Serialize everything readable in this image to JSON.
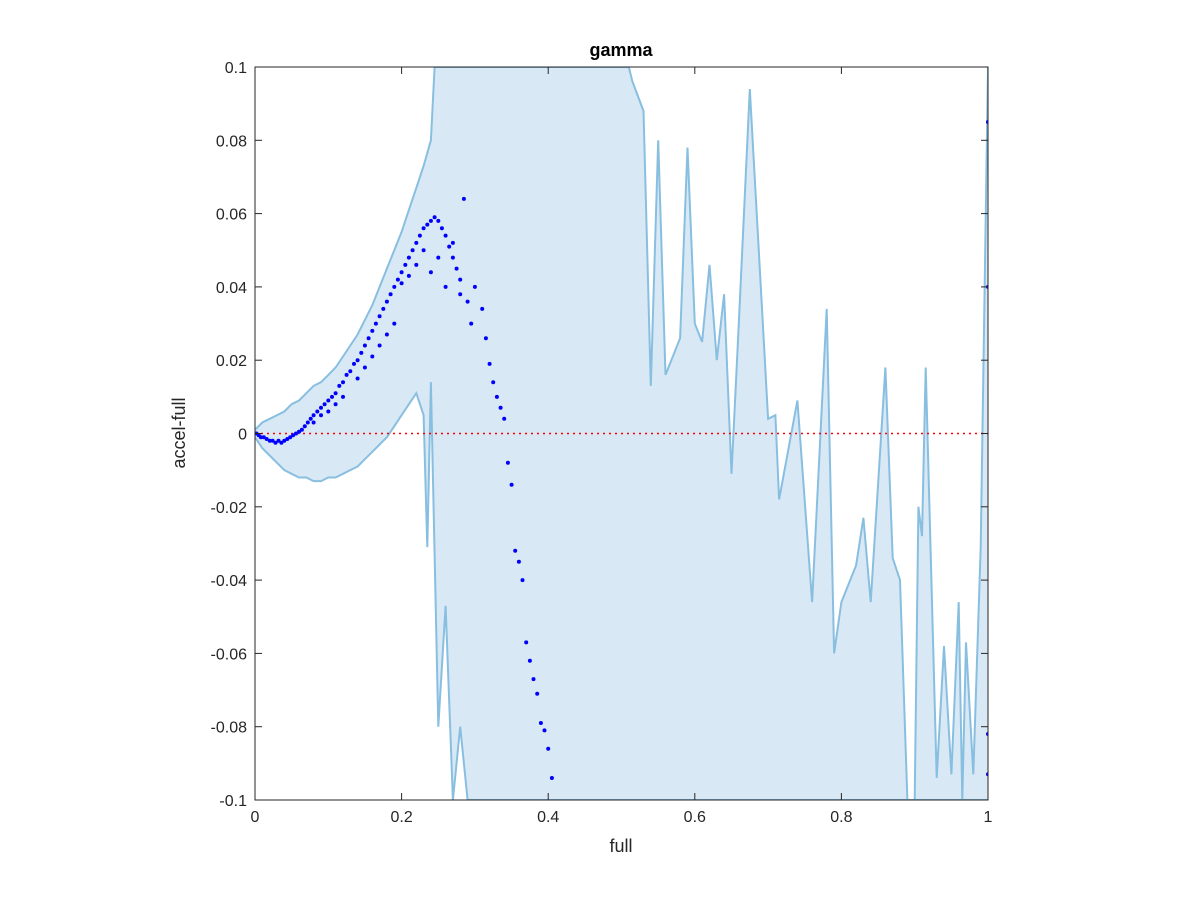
{
  "chart_data": {
    "type": "scatter",
    "title": "gamma",
    "xlabel": "full",
    "ylabel": "accel-full",
    "xlim": [
      0,
      1
    ],
    "ylim": [
      -0.1,
      0.1
    ],
    "xticks": [
      0,
      0.2,
      0.4,
      0.6,
      0.8,
      1
    ],
    "yticks": [
      -0.1,
      -0.08,
      -0.06,
      -0.04,
      -0.02,
      0,
      0.02,
      0.04,
      0.06,
      0.08,
      0.1
    ],
    "xtick_labels": [
      "0",
      "0.2",
      "0.4",
      "0.6",
      "0.8",
      "1"
    ],
    "ytick_labels": [
      "-0.1",
      "-0.08",
      "-0.06",
      "-0.04",
      "-0.02",
      "0",
      "0.02",
      "0.04",
      "0.06",
      "0.08",
      "0.1"
    ],
    "grid": false,
    "box": true,
    "colors": {
      "band_fill": "#d9e8f5",
      "band_line": "#88bfe0",
      "points": "#0000ff",
      "reference_line": "#ff0000"
    },
    "reference_line": {
      "y": 0,
      "style": "dotted"
    },
    "band": {
      "upper": [
        [
          0.0,
          0.001
        ],
        [
          0.01,
          0.003
        ],
        [
          0.02,
          0.004
        ],
        [
          0.03,
          0.005
        ],
        [
          0.04,
          0.006
        ],
        [
          0.05,
          0.008
        ],
        [
          0.06,
          0.009
        ],
        [
          0.07,
          0.011
        ],
        [
          0.08,
          0.013
        ],
        [
          0.09,
          0.014
        ],
        [
          0.1,
          0.016
        ],
        [
          0.11,
          0.018
        ],
        [
          0.12,
          0.021
        ],
        [
          0.13,
          0.024
        ],
        [
          0.14,
          0.027
        ],
        [
          0.15,
          0.031
        ],
        [
          0.16,
          0.035
        ],
        [
          0.17,
          0.04
        ],
        [
          0.18,
          0.045
        ],
        [
          0.19,
          0.05
        ],
        [
          0.2,
          0.055
        ],
        [
          0.21,
          0.061
        ],
        [
          0.22,
          0.067
        ],
        [
          0.23,
          0.073
        ],
        [
          0.24,
          0.08
        ],
        [
          0.245,
          0.1
        ],
        [
          0.265,
          0.1
        ],
        [
          0.48,
          0.1
        ],
        [
          0.49,
          0.1
        ],
        [
          0.5,
          0.1
        ],
        [
          0.51,
          0.1
        ],
        [
          0.515,
          0.096
        ],
        [
          0.53,
          0.088
        ],
        [
          0.54,
          0.013
        ],
        [
          0.55,
          0.08
        ],
        [
          0.56,
          0.016
        ],
        [
          0.58,
          0.026
        ],
        [
          0.59,
          0.078
        ],
        [
          0.6,
          0.03
        ],
        [
          0.61,
          0.025
        ],
        [
          0.62,
          0.046
        ],
        [
          0.63,
          0.02
        ],
        [
          0.64,
          0.038
        ],
        [
          0.65,
          -0.011
        ],
        [
          0.66,
          0.03
        ],
        [
          0.675,
          0.094
        ],
        [
          0.69,
          0.04
        ],
        [
          0.7,
          0.004
        ],
        [
          0.71,
          0.005
        ],
        [
          0.715,
          -0.018
        ],
        [
          0.74,
          0.009
        ],
        [
          0.76,
          -0.046
        ],
        [
          0.78,
          0.034
        ],
        [
          0.79,
          -0.06
        ],
        [
          0.8,
          -0.046
        ],
        [
          0.82,
          -0.036
        ],
        [
          0.83,
          -0.023
        ],
        [
          0.84,
          -0.046
        ],
        [
          0.86,
          0.018
        ],
        [
          0.87,
          -0.034
        ],
        [
          0.88,
          -0.04
        ],
        [
          0.89,
          -0.1
        ],
        [
          0.9,
          -0.1
        ],
        [
          0.905,
          -0.02
        ],
        [
          0.91,
          -0.028
        ],
        [
          0.915,
          0.018
        ],
        [
          0.93,
          -0.094
        ],
        [
          0.94,
          -0.058
        ],
        [
          0.95,
          -0.093
        ],
        [
          0.96,
          -0.046
        ],
        [
          0.965,
          -0.1
        ],
        [
          0.97,
          -0.057
        ],
        [
          0.98,
          -0.093
        ],
        [
          0.99,
          -0.031
        ],
        [
          1.0,
          0.1
        ]
      ],
      "lower": [
        [
          0.0,
          -0.001
        ],
        [
          0.01,
          -0.004
        ],
        [
          0.02,
          -0.006
        ],
        [
          0.03,
          -0.008
        ],
        [
          0.04,
          -0.01
        ],
        [
          0.05,
          -0.011
        ],
        [
          0.06,
          -0.012
        ],
        [
          0.07,
          -0.012
        ],
        [
          0.08,
          -0.013
        ],
        [
          0.09,
          -0.013
        ],
        [
          0.1,
          -0.012
        ],
        [
          0.11,
          -0.012
        ],
        [
          0.12,
          -0.011
        ],
        [
          0.13,
          -0.01
        ],
        [
          0.14,
          -0.009
        ],
        [
          0.15,
          -0.007
        ],
        [
          0.16,
          -0.005
        ],
        [
          0.17,
          -0.003
        ],
        [
          0.18,
          -0.001
        ],
        [
          0.19,
          0.002
        ],
        [
          0.2,
          0.005
        ],
        [
          0.21,
          0.008
        ],
        [
          0.22,
          0.011
        ],
        [
          0.23,
          0.005
        ],
        [
          0.235,
          -0.031
        ],
        [
          0.24,
          0.014
        ],
        [
          0.25,
          -0.08
        ],
        [
          0.26,
          -0.047
        ],
        [
          0.27,
          -0.1
        ],
        [
          0.28,
          -0.08
        ],
        [
          0.29,
          -0.1
        ],
        [
          0.3,
          -0.1
        ],
        [
          0.31,
          -0.1
        ],
        [
          0.48,
          -0.1
        ],
        [
          0.6,
          -0.1
        ],
        [
          0.8,
          -0.1
        ],
        [
          0.9,
          -0.1
        ],
        [
          1.0,
          -0.1
        ]
      ]
    },
    "points": [
      [
        0.002,
        0.0
      ],
      [
        0.005,
        -0.0005
      ],
      [
        0.008,
        -0.001
      ],
      [
        0.012,
        -0.001
      ],
      [
        0.016,
        -0.0015
      ],
      [
        0.02,
        -0.002
      ],
      [
        0.024,
        -0.002
      ],
      [
        0.028,
        -0.0025
      ],
      [
        0.032,
        -0.002
      ],
      [
        0.036,
        -0.0025
      ],
      [
        0.04,
        -0.002
      ],
      [
        0.044,
        -0.0015
      ],
      [
        0.048,
        -0.001
      ],
      [
        0.052,
        -0.0005
      ],
      [
        0.056,
        0.0
      ],
      [
        0.06,
        0.0005
      ],
      [
        0.064,
        0.001
      ],
      [
        0.068,
        0.002
      ],
      [
        0.072,
        0.003
      ],
      [
        0.076,
        0.004
      ],
      [
        0.08,
        0.005
      ],
      [
        0.085,
        0.006
      ],
      [
        0.09,
        0.007
      ],
      [
        0.095,
        0.008
      ],
      [
        0.1,
        0.009
      ],
      [
        0.105,
        0.01
      ],
      [
        0.11,
        0.011
      ],
      [
        0.115,
        0.013
      ],
      [
        0.12,
        0.014
      ],
      [
        0.125,
        0.016
      ],
      [
        0.13,
        0.017
      ],
      [
        0.135,
        0.019
      ],
      [
        0.14,
        0.02
      ],
      [
        0.145,
        0.022
      ],
      [
        0.15,
        0.024
      ],
      [
        0.155,
        0.026
      ],
      [
        0.16,
        0.028
      ],
      [
        0.165,
        0.03
      ],
      [
        0.17,
        0.032
      ],
      [
        0.175,
        0.034
      ],
      [
        0.18,
        0.036
      ],
      [
        0.185,
        0.038
      ],
      [
        0.19,
        0.04
      ],
      [
        0.195,
        0.042
      ],
      [
        0.2,
        0.044
      ],
      [
        0.205,
        0.046
      ],
      [
        0.21,
        0.048
      ],
      [
        0.215,
        0.05
      ],
      [
        0.22,
        0.052
      ],
      [
        0.225,
        0.054
      ],
      [
        0.23,
        0.056
      ],
      [
        0.235,
        0.057
      ],
      [
        0.24,
        0.058
      ],
      [
        0.245,
        0.059
      ],
      [
        0.25,
        0.058
      ],
      [
        0.255,
        0.056
      ],
      [
        0.26,
        0.054
      ],
      [
        0.265,
        0.051
      ],
      [
        0.27,
        0.048
      ],
      [
        0.275,
        0.045
      ],
      [
        0.28,
        0.042
      ],
      [
        0.285,
        0.064
      ],
      [
        0.29,
        0.036
      ],
      [
        0.295,
        0.03
      ],
      [
        0.3,
        0.04
      ],
      [
        0.31,
        0.034
      ],
      [
        0.315,
        0.026
      ],
      [
        0.32,
        0.019
      ],
      [
        0.325,
        0.014
      ],
      [
        0.33,
        0.01
      ],
      [
        0.335,
        0.007
      ],
      [
        0.34,
        0.004
      ],
      [
        0.345,
        -0.008
      ],
      [
        0.35,
        -0.014
      ],
      [
        0.355,
        -0.032
      ],
      [
        0.36,
        -0.035
      ],
      [
        0.365,
        -0.04
      ],
      [
        0.37,
        -0.057
      ],
      [
        0.375,
        -0.062
      ],
      [
        0.38,
        -0.067
      ],
      [
        0.385,
        -0.071
      ],
      [
        0.39,
        -0.079
      ],
      [
        0.395,
        -0.081
      ],
      [
        0.4,
        -0.086
      ],
      [
        0.405,
        -0.094
      ],
      [
        0.2,
        0.041
      ],
      [
        0.21,
        0.043
      ],
      [
        0.22,
        0.046
      ],
      [
        0.23,
        0.05
      ],
      [
        0.24,
        0.044
      ],
      [
        0.25,
        0.048
      ],
      [
        0.26,
        0.04
      ],
      [
        0.27,
        0.052
      ],
      [
        0.28,
        0.038
      ],
      [
        0.14,
        0.015
      ],
      [
        0.15,
        0.018
      ],
      [
        0.16,
        0.021
      ],
      [
        0.17,
        0.024
      ],
      [
        0.18,
        0.027
      ],
      [
        0.19,
        0.03
      ],
      [
        0.12,
        0.01
      ],
      [
        0.11,
        0.008
      ],
      [
        0.1,
        0.006
      ],
      [
        0.09,
        0.005
      ],
      [
        0.08,
        0.003
      ],
      [
        1.0,
        0.085
      ],
      [
        1.0,
        0.04
      ],
      [
        1.0,
        -0.082
      ],
      [
        1.0,
        -0.093
      ]
    ]
  }
}
